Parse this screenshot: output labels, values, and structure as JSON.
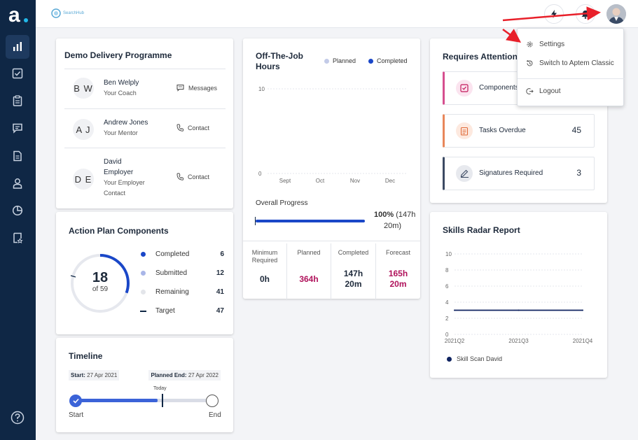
{
  "brand": {
    "name": "SearchHub",
    "logo_letter": "a"
  },
  "user_menu": {
    "items": [
      {
        "label": "Settings",
        "icon": "gear-icon"
      },
      {
        "label": "Switch to Aptem Classic",
        "icon": "history-icon"
      },
      {
        "label": "Logout",
        "icon": "logout-icon"
      }
    ]
  },
  "delivery": {
    "title": "Demo Delivery Programme",
    "people": [
      {
        "initials": "B W",
        "name": "Ben Welply",
        "role": "Your Coach",
        "action": "Messages",
        "action_icon": "message-icon"
      },
      {
        "initials": "A J",
        "name": "Andrew Jones",
        "role": "Your Mentor",
        "action": "Contact",
        "action_icon": "phone-icon"
      },
      {
        "initials": "D E",
        "name_line1": "David",
        "name_line2": "Employer",
        "role_line1": "Your Employer",
        "role_line2": "Contact",
        "action": "Contact",
        "action_icon": "phone-icon"
      }
    ]
  },
  "action_plan": {
    "title": "Action Plan Components",
    "center_value": "18",
    "center_sub": "of 59",
    "completed_fraction": 0.3051,
    "legend": [
      {
        "label": "Completed",
        "value": "6",
        "color": "#1a47c8"
      },
      {
        "label": "Submitted",
        "value": "12",
        "color": "#a9b6e8"
      },
      {
        "label": "Remaining",
        "value": "41",
        "color": "#e3e5ea"
      },
      {
        "label": "Target",
        "value": "47",
        "color": "#0f2745"
      }
    ]
  },
  "timeline": {
    "title": "Timeline",
    "start_label": "Start:",
    "start_date": "27 Apr 2021",
    "end_label": "Planned End:",
    "end_date": "27 Apr 2022",
    "today_label": "Today",
    "progress_fraction": 0.6,
    "start_text": "Start",
    "end_text": "End"
  },
  "ojt": {
    "title_line1": "Off-The-Job",
    "title_line2": "Hours",
    "legend": [
      {
        "label": "Planned",
        "color": "#c3cbe8"
      },
      {
        "label": "Completed",
        "color": "#1a47c8"
      }
    ],
    "progress_label": "Overall Progress",
    "progress_percent": "100%",
    "progress_detail_line1": "(147h",
    "progress_detail_line2": "20m)",
    "progress_fraction": 1.0,
    "stats": [
      {
        "label_line1": "Minimum",
        "label_line2": "Required",
        "value_line1": "0h",
        "value_line2": "",
        "color": "#1e2a3b"
      },
      {
        "label_line1": "Planned",
        "label_line2": "",
        "value_line1": "364h",
        "value_line2": "",
        "color": "#b0125b"
      },
      {
        "label_line1": "Completed",
        "label_line2": "",
        "value_line1": "147h",
        "value_line2": "20m",
        "color": "#1e2a3b"
      },
      {
        "label_line1": "Forecast",
        "label_line2": "",
        "value_line1": "165h",
        "value_line2": "20m",
        "color": "#b0125b"
      }
    ]
  },
  "chart_data": [
    {
      "type": "bar",
      "categories": [
        "Sept",
        "Oct",
        "Nov",
        "Dec"
      ],
      "series": [
        {
          "name": "Planned",
          "values": [
            0,
            0,
            0,
            0
          ]
        },
        {
          "name": "Completed",
          "values": [
            0,
            0,
            0,
            0
          ]
        }
      ],
      "yticks": [
        "10",
        "0"
      ],
      "ylim": [
        0,
        10
      ],
      "grid": true,
      "legend": "top-right"
    },
    {
      "type": "line",
      "title": "Skills Radar Report",
      "x": [
        "2021Q2",
        "2021Q3",
        "2021Q4"
      ],
      "series": [
        {
          "name": "Skill Scan David",
          "values": [
            3,
            3,
            3
          ]
        }
      ],
      "yticks": [
        "10",
        "8",
        "6",
        "4",
        "2",
        "0"
      ],
      "ylim": [
        0,
        10
      ],
      "grid": true,
      "legend": "bottom-left"
    }
  ],
  "attention": {
    "title": "Requires Attention",
    "items": [
      {
        "label": "Components",
        "count": "",
        "border": "#d64f8f",
        "icon": "checkbox-icon",
        "icon_bg": "#fbe4ef",
        "icon_color": "#c2185b"
      },
      {
        "label": "Tasks Overdue",
        "count": "45",
        "border": "#e8875a",
        "icon": "clipboard-icon",
        "icon_bg": "#fde9df",
        "icon_color": "#e06b3a"
      },
      {
        "label": "Signatures Required",
        "count": "3",
        "border": "#3c4a63",
        "icon": "signature-icon",
        "icon_bg": "#e7e9ee",
        "icon_color": "#3c4a63"
      }
    ]
  },
  "skills": {
    "title": "Skills Radar Report"
  }
}
